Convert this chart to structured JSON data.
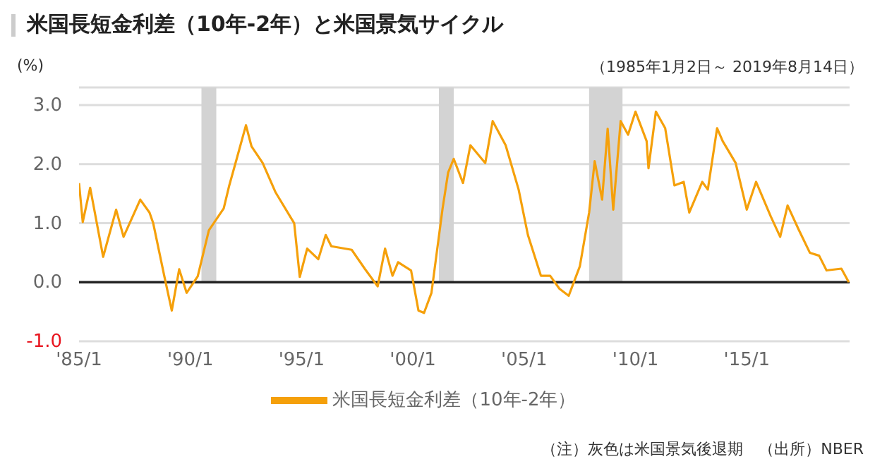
{
  "chart_data": {
    "type": "line",
    "title": "米国長短金利差（10年-2年）と米国景気サイクル",
    "subtitle": "（1985年1月2日～ 2019年8月14日）",
    "ylabel": "(%)",
    "x": [
      "1985-01",
      "1985-03",
      "1985-07",
      "1986-02",
      "1986-09",
      "1987-01",
      "1987-10",
      "1988-03",
      "1988-05",
      "1988-11",
      "1989-03",
      "1989-07",
      "1989-11",
      "1990-05",
      "1990-11",
      "1991-07",
      "1991-10",
      "1992-02",
      "1992-07",
      "1992-10",
      "1993-04",
      "1993-11",
      "1994-09",
      "1994-12",
      "1995-04",
      "1995-10",
      "1996-02",
      "1996-05",
      "1997-04",
      "1997-11",
      "1998-06",
      "1998-10",
      "1999-02",
      "1999-05",
      "1999-12",
      "2000-04",
      "2000-07",
      "2000-11",
      "2001-05",
      "2001-08",
      "2001-11",
      "2002-04",
      "2002-08",
      "2003-04",
      "2003-08",
      "2004-03",
      "2004-10",
      "2005-03",
      "2005-10",
      "2006-03",
      "2006-08",
      "2007-01",
      "2007-07",
      "2007-12",
      "2008-03",
      "2008-07",
      "2008-10",
      "2009-01",
      "2009-05",
      "2009-09",
      "2010-01",
      "2010-07",
      "2010-08",
      "2010-12",
      "2011-05",
      "2011-10",
      "2012-03",
      "2012-06",
      "2013-01",
      "2013-04",
      "2013-09",
      "2013-12",
      "2014-07",
      "2015-01",
      "2015-06",
      "2016-02",
      "2016-07",
      "2016-11",
      "2017-05",
      "2017-11",
      "2018-04",
      "2018-08",
      "2019-04",
      "2019-08"
    ],
    "series": [
      {
        "name": "米国長短金利差（10年-2年）",
        "color": "#f5a00a",
        "values": [
          1.68,
          1.02,
          1.6,
          0.43,
          1.23,
          0.77,
          1.4,
          1.18,
          1.0,
          0.1,
          -0.48,
          0.22,
          -0.18,
          0.1,
          0.88,
          1.25,
          1.64,
          2.09,
          2.66,
          2.3,
          2.02,
          1.52,
          1.0,
          0.09,
          0.57,
          0.39,
          0.8,
          0.61,
          0.55,
          0.23,
          -0.07,
          0.57,
          0.11,
          0.34,
          0.2,
          -0.48,
          -0.52,
          -0.18,
          1.25,
          1.86,
          2.09,
          1.68,
          2.32,
          2.02,
          2.73,
          2.32,
          1.57,
          0.8,
          0.11,
          0.11,
          -0.11,
          -0.23,
          0.27,
          1.18,
          2.05,
          1.4,
          2.6,
          1.23,
          2.73,
          2.5,
          2.89,
          2.39,
          1.93,
          2.89,
          2.61,
          1.64,
          1.7,
          1.18,
          1.7,
          1.57,
          2.61,
          2.39,
          2.02,
          1.23,
          1.7,
          1.11,
          0.77,
          1.3,
          0.89,
          0.5,
          0.45,
          0.2,
          0.23,
          0.0
        ]
      }
    ],
    "xlim": [
      "1985-01",
      "2019-08-14"
    ],
    "xticks": [
      {
        "value": "1985-01",
        "label": "'85/1"
      },
      {
        "value": "1990-01",
        "label": "'90/1"
      },
      {
        "value": "1995-01",
        "label": "'95/1"
      },
      {
        "value": "2000-01",
        "label": "'00/1"
      },
      {
        "value": "2005-01",
        "label": "'05/1"
      },
      {
        "value": "2010-01",
        "label": "'10/1"
      },
      {
        "value": "2015-01",
        "label": "'15/1"
      }
    ],
    "ylim": [
      -1.0,
      3.3
    ],
    "yticks": [
      {
        "value": -1,
        "label": "-1.0"
      },
      {
        "value": 0,
        "label": "0.0"
      },
      {
        "value": 1,
        "label": "1.0"
      },
      {
        "value": 2,
        "label": "2.0"
      },
      {
        "value": 3,
        "label": "3.0"
      }
    ],
    "bands": [
      {
        "axis": "x",
        "from": "1990-07",
        "to": "1991-03",
        "color": "#d3d3d3"
      },
      {
        "axis": "x",
        "from": "2001-03",
        "to": "2001-11",
        "color": "#d3d3d3"
      },
      {
        "axis": "x",
        "from": "2007-12",
        "to": "2009-06",
        "color": "#d3d3d3"
      }
    ],
    "ref_lines": [
      {
        "axis": "y",
        "value": 0,
        "color": "#222222"
      }
    ],
    "grid": "y",
    "legend": "bottom",
    "marker": "none",
    "line_style": "solid",
    "annotations": [
      "（注）灰色は米国景気後退期　（出所）NBER"
    ]
  }
}
